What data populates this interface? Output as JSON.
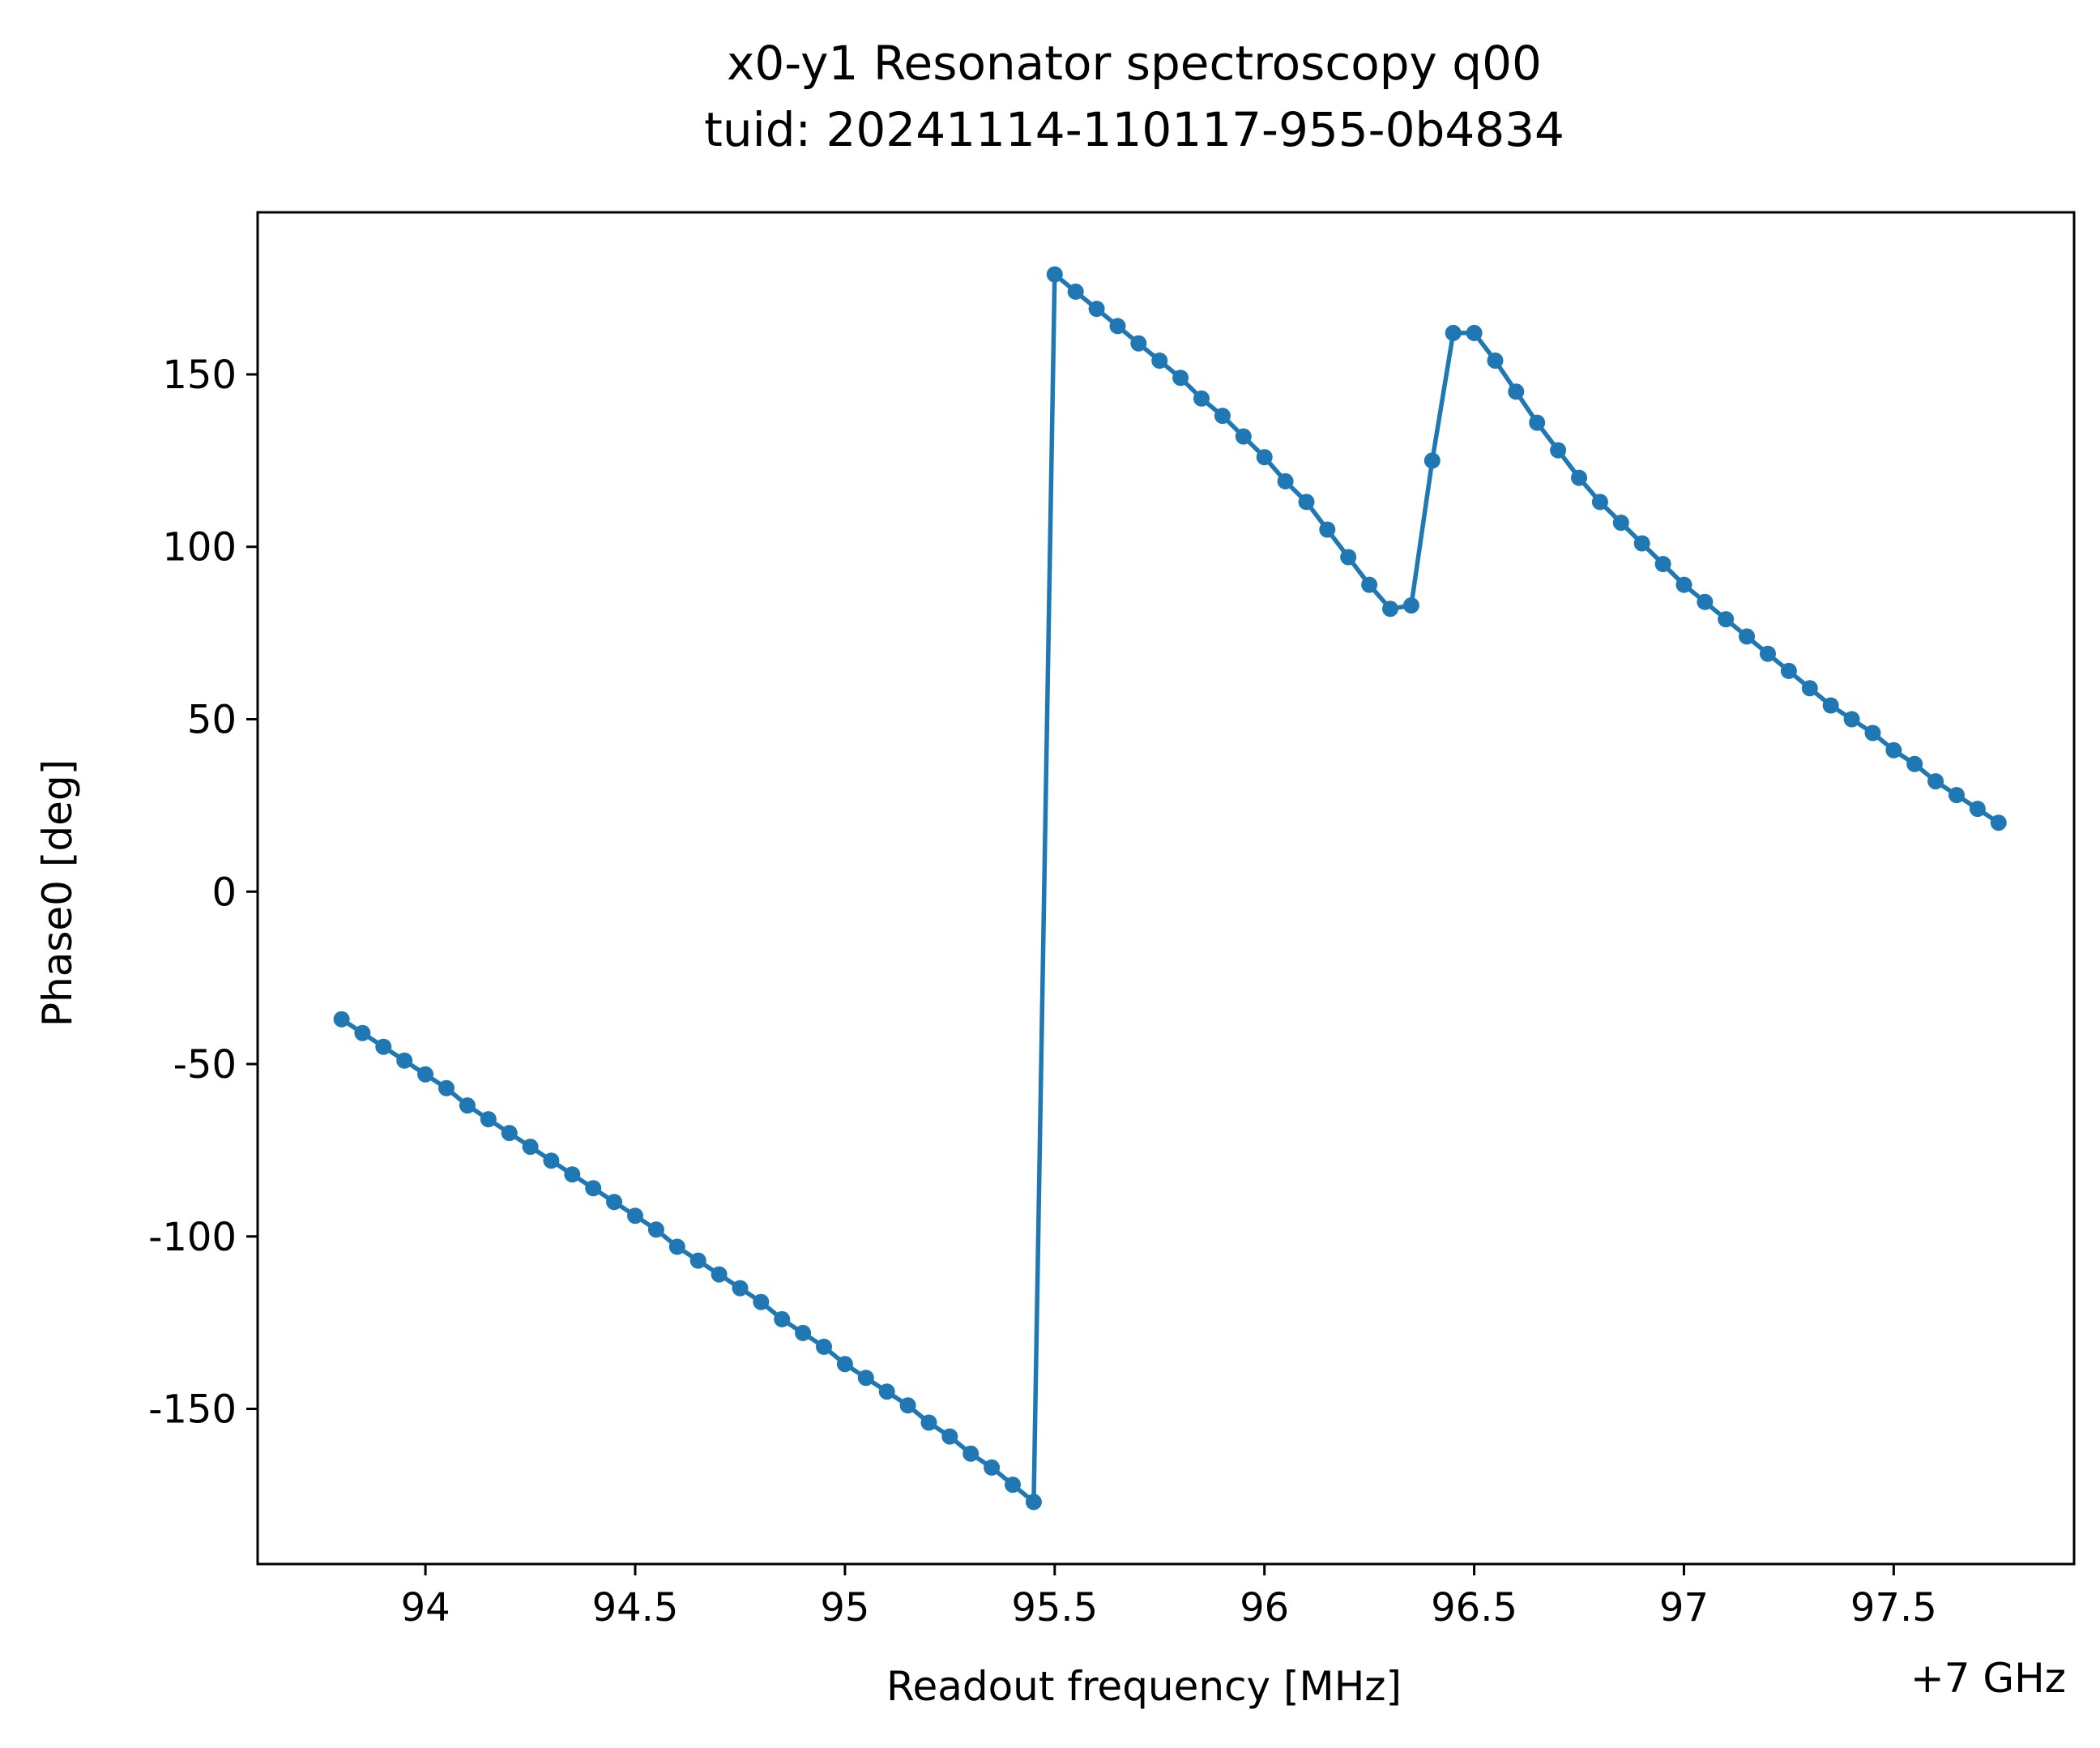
{
  "chart_data": {
    "type": "line",
    "title": "x0-y1 Resonator spectroscopy q00",
    "subtitle": "tuid: 20241114-110117-955-0b4834",
    "xlabel": "Readout frequency [MHz]",
    "ylabel": "Phase0 [deg]",
    "x_offset_label": "+7 GHz",
    "xlim": [
      93.6,
      97.93
    ],
    "ylim": [
      -195,
      197
    ],
    "xticks": [
      94,
      94.5,
      95,
      95.5,
      96,
      96.5,
      97,
      97.5
    ],
    "xtick_labels": [
      "94",
      "94.5",
      "95",
      "95.5",
      "96",
      "96.5",
      "97",
      "97.5"
    ],
    "yticks": [
      150,
      100,
      50,
      0,
      -50,
      -100,
      -150
    ],
    "ytick_labels": [
      "150",
      "100",
      "50",
      "0",
      "-50",
      "-100",
      "-150"
    ],
    "grid": false,
    "series": [
      {
        "color": "#1f77b4",
        "x": [
          93.8,
          93.85,
          93.9,
          93.95,
          94.0,
          94.05,
          94.1,
          94.15,
          94.2,
          94.25,
          94.3,
          94.35,
          94.4,
          94.45,
          94.5,
          94.55,
          94.6,
          94.65,
          94.7,
          94.75,
          94.8,
          94.85,
          94.9,
          94.95,
          95.0,
          95.05,
          95.1,
          95.15,
          95.2,
          95.25,
          95.3,
          95.35,
          95.4,
          95.45,
          95.5,
          95.55,
          95.6,
          95.65,
          95.7,
          95.75,
          95.8,
          95.85,
          95.9,
          95.95,
          96.0,
          96.05,
          96.1,
          96.15,
          96.2,
          96.25,
          96.3,
          96.35,
          96.4,
          96.45,
          96.5,
          96.55,
          96.6,
          96.65,
          96.7,
          96.75,
          96.8,
          96.85,
          96.9,
          96.95,
          97.0,
          97.05,
          97.1,
          97.15,
          97.2,
          97.25,
          97.3,
          97.35,
          97.4,
          97.45,
          97.5,
          97.55,
          97.6,
          97.65,
          97.7,
          97.75
        ],
        "y": [
          -37,
          -41,
          -45,
          -49,
          -53,
          -57,
          -62,
          -66,
          -70,
          -74,
          -78,
          -82,
          -86,
          -90,
          -94,
          -98,
          -103,
          -107,
          -111,
          -115,
          -119,
          -124,
          -128,
          -132,
          -137,
          -141,
          -145,
          -149,
          -154,
          -158,
          -163,
          -167,
          -172,
          -177,
          179,
          174,
          169,
          164,
          159,
          154,
          149,
          143,
          138,
          132,
          126,
          119,
          113,
          105,
          97,
          89,
          82,
          83,
          125,
          162,
          162,
          154,
          145,
          136,
          128,
          120,
          113,
          107,
          101,
          95,
          89,
          84,
          79,
          74,
          69,
          64,
          59,
          54,
          50,
          46,
          41,
          37,
          32,
          28,
          24,
          20
        ]
      }
    ]
  }
}
